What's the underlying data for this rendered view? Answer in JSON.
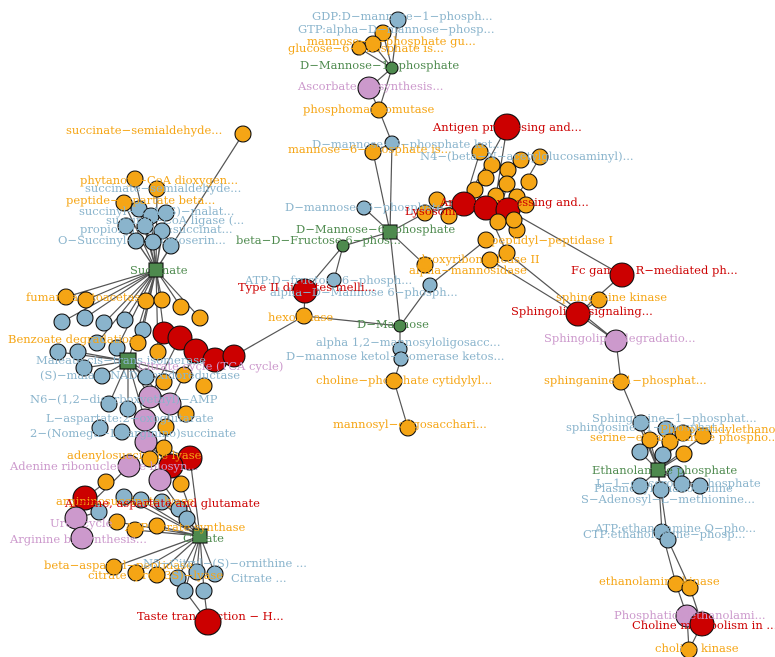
{
  "colors": {
    "compound": "#8ab4cc",
    "enzyme": "#f5a515",
    "pathway": "#cc99cc",
    "disease": "#cc0000",
    "hub": "#4e8a4e",
    "edge": "#555555"
  },
  "labels": {
    "gdp_mannose": "GDP:D−mannose−1−phosph...",
    "gtp_alpha": "GTP:alpha−D−mannose−phosp...",
    "mannose_1p_gu": "mannose−1−phosphate gu...",
    "glucose_6p": "glucose−6−phosphate is...",
    "d_mannose_1p": "D−Mannose−1−phosphate",
    "ascorbate": "Ascorbate biosynthesis...",
    "phosphomannomutase": "phosphomannomutase",
    "succinate_semi": "succinate−semialdehyde...",
    "d_mannose_6p_iso": "D−mannose−6−phosphate ket...",
    "mannose_6p_isomerase": "mannose−6−phosphate is...",
    "n4_beta": "N4−(beta−N−acetylglucosaminyl)...",
    "antigen": "Antigen processing and...",
    "phytanoyl": "phytanoyl−CoA dioxygen...",
    "succinate_semi2": "succinate−semialdehyde...",
    "peptide_asp": "peptide−aspartate beta...",
    "succinyl_s_malat": "succinyl−CoA:(S)−malat...",
    "succinyl_coa_lig": "succinyl−CoA ligase (...",
    "propionyl": "propionyl−CoA:succinat...",
    "o_succinyl": "O−Succinyl−L−homoserin...",
    "succinate": "Succinate",
    "d_mannose_6p_left": "D−mannose−6−phosphate",
    "d_mannose_6p_hub": "D−Mannose−6−phosphate",
    "lysosome": "Lysosome",
    "antigen2": "Antigen processing and...",
    "dipeptidyl": "dipeptidyl−peptidase I",
    "beta_d_fructose": "beta−D−Fructose 6−phos...",
    "deoxyribo": "deoxyribonuclease II",
    "alpha_mannosidase": "alpha−mannosidase",
    "atp_d_fructose": "ATP:D−fructose 6−phosph...",
    "alpha_d_mannose": "alpha−D−Mannose 6−phosph...",
    "type_ii": "Type II diabetes melli...",
    "hexokinase": "hexokinase",
    "fc_gamma": "Fc gamma R−mediated ph...",
    "sphingosine_kinase": "sphingosine kinase",
    "sphingolipid_signal": "Sphingolipid signaling...",
    "sphingolipid_degrad": "Sphingolipid degradatio...",
    "fumaryl": "fumarylacetoacetase",
    "d_mannose": "D−Mannose",
    "alpha_12": "alpha 1,2−mannosyloligosacc...",
    "d_mannose_keto": "D−mannose ketol−isomerase ketos...",
    "sphinganine_kinase": "sphinganine−1−phosphat...",
    "acyl_benz": "Benzoate degradation",
    "maleate": "Maleate cis−trans isomerase",
    "citrate_cycle": "Citrate cycle (TCA cycle)",
    "s_malate": "(S)−malate:NAD+ oxidoreductase",
    "n6_12": "N6−(1,2−dicarboxyethyl)−AMP",
    "l_aspart": "L−aspartate:2−oxoglutarate",
    "two_omega": "2−(Nomega−L−arginino)succinate",
    "adenine_ribo": "Adenine ribonucleotide biosyn...",
    "adenylosucc": "adenylosuccinate lyase",
    "arginino": "argininosuccinate lyase",
    "alanine": "Alanine, aspartate and glutamate",
    "urea": "Urea cycle",
    "arginine": "Arginine biosynthesis...",
    "atp_citrate": "ATP citrate synthase",
    "citrate": "Citrate",
    "beta_aspart": "beta−aspartyl−peptidase",
    "citrate_lyase": "citrate (pro−3S)−lyase",
    "n5_citryl": "N5−Citryl−(S)−ornithine ...",
    "citrate_c": "Citrate ...",
    "taste": "Taste transduction − H...",
    "cholinephos": "choline−phosphate cytidylyl...",
    "mannosyl": "mannosyl−oligosacchari...",
    "sphinganine_1p": "Sphinganine−1−phosphat...",
    "sphingosine_1p": "sphingosine−1−phosphat...",
    "serine_eth": "serine−ethanolamine phospho...",
    "phosphatidyl_eth": "Phosphatidylethanolamine/ph...",
    "ethanolamine_p": "Ethanolamine phosphate",
    "l_1_glycero": "L−1−glycero−3−phosphate",
    "plasmenyl": "Plasmenylethanolamine",
    "s_adenosyl": "S−Adenosyl−L−methionine...",
    "atp_ethanol": "ATP:ethanolamine O−pho...",
    "ctp_ethanol": "CTP:ethanolamine−phosp...",
    "ethanolamine_kinase": "ethanolamine kinase",
    "phosphatidylchol": "Phosphatidylethanolami...",
    "choline_metab": "Choline metabolism in ...",
    "choline_kinase": "choline kinase"
  }
}
